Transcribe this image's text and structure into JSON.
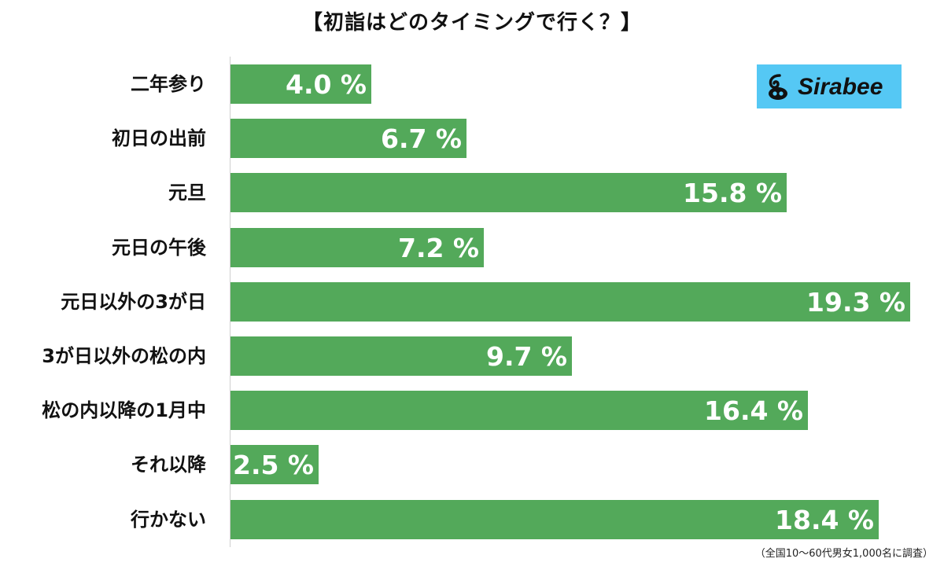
{
  "chart_data": {
    "type": "bar",
    "orientation": "horizontal",
    "title": "【初詣はどのタイミングで行く？】",
    "categories": [
      "二年参り",
      "初日の出前",
      "元旦",
      "元日の午後",
      "元日以外の3が日",
      "3が日以外の松の内",
      "松の内以降の1月中",
      "それ以降",
      "行かない"
    ],
    "values": [
      4.0,
      6.7,
      15.8,
      7.2,
      19.3,
      9.7,
      16.4,
      2.5,
      18.4
    ],
    "value_labels": [
      "4.0 %",
      "6.7 %",
      "15.8 %",
      "7.2 %",
      "19.3 %",
      "9.7 %",
      "16.4 %",
      "2.5 %",
      "18.4 %"
    ],
    "xlim": [
      0,
      19.3
    ],
    "grid": false,
    "bar_color": "#53a95a",
    "value_label_color": "#ffffff"
  },
  "logo": {
    "text": "Sirabee",
    "icon": "sirabee-swirl-icon",
    "background_color": "#55c8f4"
  },
  "footnote": "（全国10〜60代男女1,000名に調査）"
}
